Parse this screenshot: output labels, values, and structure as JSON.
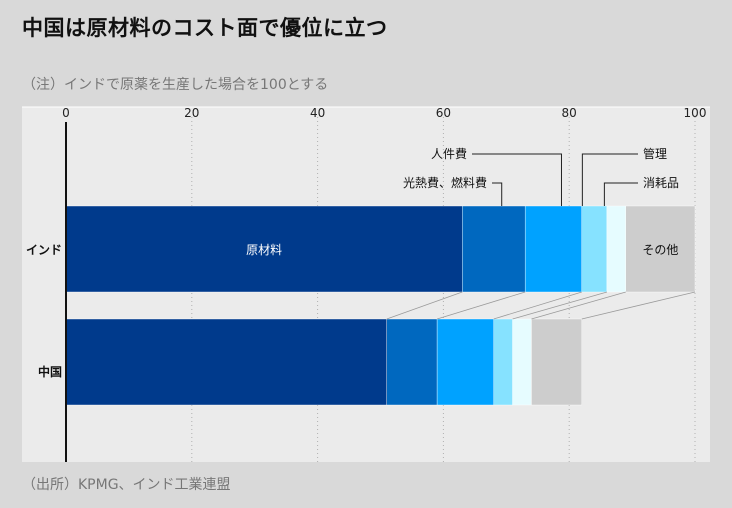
{
  "title": "中国は原材料のコスト面で優位に立つ",
  "note": "（注）インドで原薬を生産した場合を100とする",
  "source": "（出所）KPMG、インド工業連盟",
  "colors": {
    "background": "#d9d9d9",
    "plot_background": "#ebebeb",
    "原材料": "#003a8c",
    "光熱費、燃料費": "#0068bf",
    "人件費": "#00a2ff",
    "管理": "#86e2ff",
    "消耗品": "#e6fcff",
    "その他": "#cdcdcd"
  },
  "chart_data": {
    "type": "bar",
    "orientation": "horizontal",
    "stacked": true,
    "categories": [
      "インド",
      "中国"
    ],
    "series": [
      {
        "name": "原材料",
        "values": [
          63,
          51
        ]
      },
      {
        "name": "光熱費、燃料費",
        "values": [
          10,
          8
        ]
      },
      {
        "name": "人件費",
        "values": [
          9,
          9
        ]
      },
      {
        "name": "管理",
        "values": [
          4,
          3
        ]
      },
      {
        "name": "消耗品",
        "values": [
          3,
          3
        ]
      },
      {
        "name": "その他",
        "values": [
          11,
          8
        ]
      }
    ],
    "xticks": [
      "0",
      "20",
      "40",
      "60",
      "80",
      "100"
    ],
    "xlim": [
      0,
      100
    ],
    "in_bar_labels": [
      "原材料",
      "その他"
    ],
    "callout_labels": [
      "人件費",
      "光熱費、燃料費",
      "管理",
      "消耗品"
    ],
    "grid": true
  }
}
